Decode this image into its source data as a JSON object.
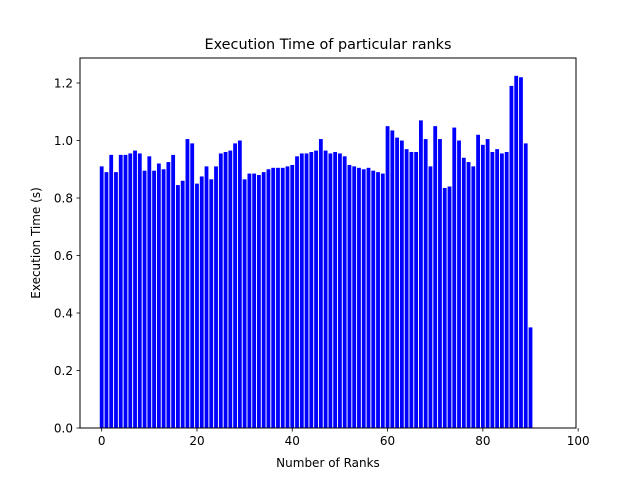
{
  "chart_data": {
    "type": "bar",
    "title": "Execution Time of particular ranks",
    "xlabel": "Number of Ranks",
    "ylabel": "Execution Time (s)",
    "xlim": [
      -4.55,
      99.55
    ],
    "ylim": [
      0,
      1.287
    ],
    "x_ticks": [
      0,
      20,
      40,
      60,
      80,
      100
    ],
    "x_tick_labels": [
      "0",
      "20",
      "40",
      "60",
      "80",
      "100"
    ],
    "y_ticks": [
      0.0,
      0.2,
      0.4,
      0.6,
      0.8,
      1.0,
      1.2
    ],
    "y_tick_labels": [
      "0.0",
      "0.2",
      "0.4",
      "0.6",
      "0.8",
      "1.0",
      "1.2"
    ],
    "bar_color": "#0000ff",
    "grid": false,
    "x": [
      0,
      1,
      2,
      3,
      4,
      5,
      6,
      7,
      8,
      9,
      10,
      11,
      12,
      13,
      14,
      15,
      16,
      17,
      18,
      19,
      20,
      21,
      22,
      23,
      24,
      25,
      26,
      27,
      28,
      29,
      30,
      31,
      32,
      33,
      34,
      35,
      36,
      37,
      38,
      39,
      40,
      41,
      42,
      43,
      44,
      45,
      46,
      47,
      48,
      49,
      50,
      51,
      52,
      53,
      54,
      55,
      56,
      57,
      58,
      59,
      60,
      61,
      62,
      63,
      64,
      65,
      66,
      67,
      68,
      69,
      70,
      71,
      72,
      73,
      74,
      75,
      76,
      77,
      78,
      79,
      80,
      81,
      82,
      83,
      84,
      85,
      86,
      87,
      88,
      89,
      90
    ],
    "values": [
      0.91,
      0.89,
      0.95,
      0.89,
      0.95,
      0.95,
      0.955,
      0.965,
      0.955,
      0.895,
      0.945,
      0.895,
      0.92,
      0.9,
      0.925,
      0.95,
      0.845,
      0.86,
      1.005,
      0.99,
      0.85,
      0.875,
      0.91,
      0.865,
      0.91,
      0.955,
      0.96,
      0.965,
      0.99,
      1.0,
      0.865,
      0.885,
      0.885,
      0.88,
      0.89,
      0.9,
      0.905,
      0.905,
      0.905,
      0.91,
      0.915,
      0.945,
      0.955,
      0.955,
      0.96,
      0.965,
      1.005,
      0.965,
      0.955,
      0.96,
      0.955,
      0.945,
      0.915,
      0.91,
      0.905,
      0.9,
      0.905,
      0.895,
      0.89,
      0.885,
      1.05,
      1.035,
      1.01,
      1.0,
      0.97,
      0.96,
      0.96,
      1.07,
      1.005,
      0.91,
      1.05,
      1.005,
      0.835,
      0.84,
      1.045,
      1.0,
      0.94,
      0.925,
      0.91,
      1.02,
      0.985,
      1.005,
      0.96,
      0.97,
      0.955,
      0.96,
      1.19,
      1.225,
      1.22,
      0.99,
      0.35
    ]
  }
}
